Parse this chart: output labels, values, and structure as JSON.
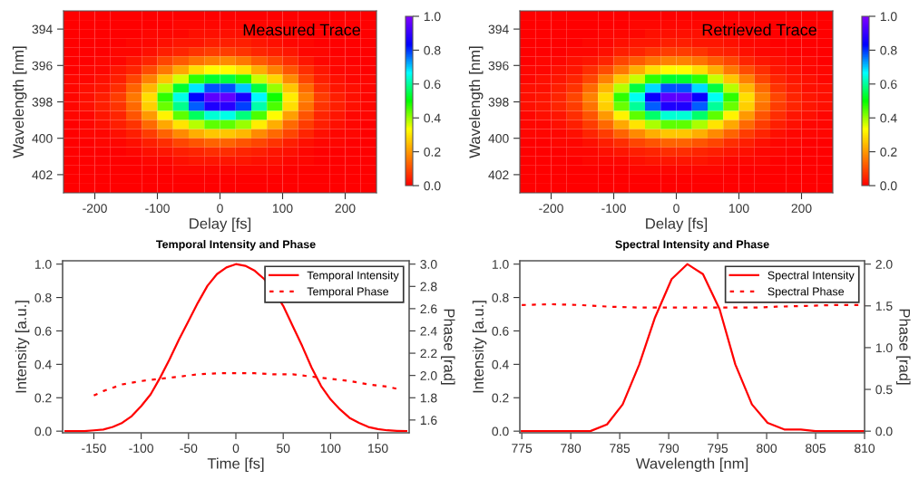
{
  "chart_data": [
    {
      "type": "heatmap",
      "annotations": [
        "Measured Trace"
      ],
      "xlabel": "Delay [fs]",
      "ylabel": "Wavelength [nm]",
      "x": [
        -237.5,
        -212.5,
        -187.5,
        -162.5,
        -137.5,
        -112.5,
        -87.5,
        -62.5,
        -37.5,
        -12.5,
        12.5,
        37.5,
        62.5,
        87.5,
        112.5,
        137.5,
        162.5,
        187.5,
        212.5,
        237.5
      ],
      "y": [
        393.25,
        393.75,
        394.25,
        394.75,
        395.25,
        395.75,
        396.25,
        396.75,
        397.25,
        397.75,
        398.25,
        398.75,
        399.25,
        399.75,
        400.25,
        400.75,
        401.25,
        401.75,
        402.25,
        402.75
      ],
      "xlim": [
        -250,
        250
      ],
      "ylim": [
        403,
        393
      ],
      "xticks": [
        -200,
        -100,
        0,
        100,
        200
      ],
      "yticks": [
        394,
        396,
        398,
        400,
        402
      ],
      "clim": [
        0,
        1
      ],
      "cticks": [
        {
          "value": 0,
          "label": "0.0"
        },
        {
          "value": 0.2,
          "label": "0.2"
        },
        {
          "value": 0.4,
          "label": "0.4"
        },
        {
          "value": 0.6,
          "label": "0.6"
        },
        {
          "value": 0.8,
          "label": "0.8"
        },
        {
          "value": 1,
          "label": "1.0"
        }
      ],
      "cells": [
        [
          0,
          0,
          0,
          0,
          0,
          0,
          0,
          0,
          0,
          0,
          0,
          0,
          0,
          0,
          0,
          0,
          0,
          0,
          0,
          0
        ],
        [
          0,
          0,
          0,
          0,
          0,
          0,
          0,
          0.01,
          0.01,
          0.01,
          0.01,
          0.01,
          0.01,
          0.01,
          0,
          0,
          0,
          0,
          0,
          0
        ],
        [
          0,
          0,
          0,
          0,
          0,
          0.01,
          0.01,
          0.01,
          0.02,
          0.02,
          0.02,
          0.02,
          0.01,
          0.01,
          0.01,
          0,
          0,
          0,
          0,
          0
        ],
        [
          0,
          0,
          0,
          0,
          0.01,
          0.01,
          0.02,
          0.03,
          0.03,
          0.04,
          0.04,
          0.04,
          0.03,
          0.02,
          0.01,
          0.01,
          0,
          0,
          0,
          0
        ],
        [
          0,
          0,
          0,
          0.01,
          0.01,
          0.02,
          0.04,
          0.05,
          0.07,
          0.08,
          0.08,
          0.07,
          0.05,
          0.04,
          0.03,
          0.01,
          0.01,
          0,
          0,
          0
        ],
        [
          0,
          0,
          0.01,
          0.01,
          0.03,
          0.05,
          0.09,
          0.12,
          0.15,
          0.17,
          0.18,
          0.16,
          0.12,
          0.09,
          0.06,
          0.03,
          0.01,
          0.01,
          0,
          0
        ],
        [
          0,
          0.01,
          0.01,
          0.03,
          0.05,
          0.1,
          0.16,
          0.22,
          0.29,
          0.33,
          0.33,
          0.3,
          0.23,
          0.17,
          0.11,
          0.06,
          0.03,
          0.01,
          0.01,
          0
        ],
        [
          0.01,
          0.01,
          0.02,
          0.04,
          0.09,
          0.17,
          0.26,
          0.36,
          0.47,
          0.53,
          0.54,
          0.48,
          0.37,
          0.28,
          0.18,
          0.09,
          0.04,
          0.02,
          0.01,
          0.01
        ],
        [
          0.01,
          0.02,
          0.03,
          0.06,
          0.13,
          0.24,
          0.38,
          0.53,
          0.68,
          0.78,
          0.78,
          0.7,
          0.54,
          0.4,
          0.26,
          0.14,
          0.06,
          0.03,
          0.02,
          0.01
        ],
        [
          0.01,
          0.02,
          0.04,
          0.08,
          0.16,
          0.29,
          0.47,
          0.65,
          0.83,
          0.95,
          0.96,
          0.86,
          0.67,
          0.49,
          0.31,
          0.17,
          0.08,
          0.04,
          0.02,
          0.01
        ],
        [
          0.01,
          0.02,
          0.04,
          0.07,
          0.14,
          0.27,
          0.43,
          0.59,
          0.77,
          0.87,
          0.88,
          0.79,
          0.61,
          0.45,
          0.29,
          0.15,
          0.07,
          0.04,
          0.02,
          0.01
        ],
        [
          0.01,
          0.01,
          0.03,
          0.05,
          0.11,
          0.2,
          0.32,
          0.44,
          0.56,
          0.64,
          0.65,
          0.58,
          0.45,
          0.33,
          0.21,
          0.11,
          0.05,
          0.03,
          0.01,
          0.01
        ],
        [
          0,
          0.01,
          0.02,
          0.04,
          0.07,
          0.14,
          0.22,
          0.3,
          0.38,
          0.44,
          0.44,
          0.4,
          0.31,
          0.23,
          0.14,
          0.08,
          0.04,
          0.02,
          0.01,
          0
        ],
        [
          0,
          0.01,
          0.01,
          0.02,
          0.04,
          0.08,
          0.13,
          0.18,
          0.23,
          0.26,
          0.26,
          0.24,
          0.18,
          0.14,
          0.09,
          0.05,
          0.02,
          0.01,
          0.01,
          0
        ],
        [
          0,
          0,
          0.01,
          0.01,
          0.02,
          0.04,
          0.06,
          0.09,
          0.11,
          0.13,
          0.13,
          0.11,
          0.09,
          0.07,
          0.04,
          0.02,
          0.01,
          0.01,
          0,
          0
        ],
        [
          0,
          0,
          0,
          0,
          0.01,
          0.02,
          0.03,
          0.04,
          0.05,
          0.06,
          0.06,
          0.05,
          0.04,
          0.03,
          0.02,
          0.01,
          0,
          0,
          0,
          0
        ],
        [
          0,
          0,
          0,
          0,
          0,
          0.01,
          0.01,
          0.02,
          0.03,
          0.03,
          0.03,
          0.03,
          0.02,
          0.02,
          0.01,
          0.01,
          0,
          0,
          0,
          0
        ],
        [
          0,
          0,
          0,
          0,
          0,
          0,
          0,
          0.01,
          0.01,
          0.01,
          0.01,
          0.01,
          0.01,
          0.01,
          0,
          0,
          0,
          0,
          0,
          0
        ],
        [
          0,
          0,
          0,
          0,
          0,
          0,
          0,
          0,
          0,
          0,
          0,
          0,
          0,
          0,
          0,
          0,
          0,
          0,
          0,
          0
        ],
        [
          0,
          0,
          0,
          0,
          0,
          0,
          0,
          0,
          0,
          0,
          0,
          0,
          0,
          0,
          0,
          0,
          0,
          0,
          0,
          0
        ]
      ]
    },
    {
      "type": "heatmap",
      "annotations": [
        "Retrieved Trace"
      ],
      "xlabel": "Delay [fs]",
      "ylabel": "Wavelength [nm]",
      "x": [
        -237.5,
        -212.5,
        -187.5,
        -162.5,
        -137.5,
        -112.5,
        -87.5,
        -62.5,
        -37.5,
        -12.5,
        12.5,
        37.5,
        62.5,
        87.5,
        112.5,
        137.5,
        162.5,
        187.5,
        212.5,
        237.5
      ],
      "y": [
        393.25,
        393.75,
        394.25,
        394.75,
        395.25,
        395.75,
        396.25,
        396.75,
        397.25,
        397.75,
        398.25,
        398.75,
        399.25,
        399.75,
        400.25,
        400.75,
        401.25,
        401.75,
        402.25,
        402.75
      ],
      "xlim": [
        -250,
        250
      ],
      "ylim": [
        403,
        393
      ],
      "xticks": [
        -200,
        -100,
        0,
        100,
        200
      ],
      "yticks": [
        394,
        396,
        398,
        400,
        402
      ],
      "clim": [
        0,
        1
      ],
      "cticks": [
        {
          "value": 0,
          "label": "0.0"
        },
        {
          "value": 0.2,
          "label": "0.2"
        },
        {
          "value": 0.4,
          "label": "0.4"
        },
        {
          "value": 0.6,
          "label": "0.6"
        },
        {
          "value": 0.8,
          "label": "0.8"
        },
        {
          "value": 1,
          "label": "1.0"
        }
      ],
      "cells": [
        [
          0,
          0,
          0,
          0,
          0,
          0,
          0,
          0,
          0,
          0,
          0,
          0,
          0,
          0,
          0,
          0,
          0,
          0,
          0,
          0
        ],
        [
          0,
          0,
          0,
          0,
          0,
          0,
          0,
          0.01,
          0.01,
          0.01,
          0.01,
          0.01,
          0.01,
          0,
          0,
          0,
          0,
          0,
          0,
          0
        ],
        [
          0,
          0,
          0,
          0,
          0,
          0.01,
          0.01,
          0.01,
          0.02,
          0.02,
          0.02,
          0.02,
          0.01,
          0.01,
          0.01,
          0,
          0,
          0,
          0,
          0
        ],
        [
          0,
          0,
          0,
          0,
          0.01,
          0.01,
          0.02,
          0.03,
          0.03,
          0.04,
          0.04,
          0.03,
          0.03,
          0.02,
          0.01,
          0.01,
          0,
          0,
          0,
          0
        ],
        [
          0,
          0,
          0,
          0.01,
          0.01,
          0.02,
          0.04,
          0.05,
          0.07,
          0.08,
          0.08,
          0.07,
          0.05,
          0.04,
          0.02,
          0.01,
          0.01,
          0,
          0,
          0
        ],
        [
          0,
          0.01,
          0.01,
          0.02,
          0.03,
          0.05,
          0.09,
          0.12,
          0.15,
          0.17,
          0.17,
          0.15,
          0.12,
          0.09,
          0.05,
          0.03,
          0.02,
          0.01,
          0.01,
          0
        ],
        [
          0.01,
          0.01,
          0.02,
          0.03,
          0.06,
          0.1,
          0.16,
          0.23,
          0.29,
          0.33,
          0.33,
          0.29,
          0.23,
          0.16,
          0.1,
          0.06,
          0.03,
          0.02,
          0.01,
          0.01
        ],
        [
          0.01,
          0.02,
          0.03,
          0.05,
          0.09,
          0.17,
          0.26,
          0.37,
          0.47,
          0.53,
          0.53,
          0.47,
          0.37,
          0.26,
          0.17,
          0.09,
          0.05,
          0.03,
          0.02,
          0.01
        ],
        [
          0.02,
          0.02,
          0.04,
          0.07,
          0.14,
          0.24,
          0.38,
          0.54,
          0.69,
          0.78,
          0.78,
          0.69,
          0.54,
          0.38,
          0.24,
          0.14,
          0.07,
          0.04,
          0.02,
          0.02
        ],
        [
          0.02,
          0.03,
          0.05,
          0.09,
          0.17,
          0.29,
          0.47,
          0.66,
          0.84,
          0.95,
          0.95,
          0.84,
          0.66,
          0.47,
          0.29,
          0.17,
          0.09,
          0.05,
          0.03,
          0.02
        ],
        [
          0.02,
          0.03,
          0.05,
          0.08,
          0.15,
          0.27,
          0.43,
          0.6,
          0.77,
          0.87,
          0.87,
          0.77,
          0.6,
          0.43,
          0.27,
          0.15,
          0.08,
          0.05,
          0.03,
          0.02
        ],
        [
          0.01,
          0.02,
          0.03,
          0.06,
          0.11,
          0.2,
          0.32,
          0.44,
          0.57,
          0.64,
          0.64,
          0.57,
          0.44,
          0.32,
          0.2,
          0.11,
          0.06,
          0.03,
          0.02,
          0.01
        ],
        [
          0.01,
          0.01,
          0.02,
          0.04,
          0.08,
          0.14,
          0.22,
          0.3,
          0.39,
          0.44,
          0.44,
          0.39,
          0.3,
          0.22,
          0.14,
          0.08,
          0.04,
          0.02,
          0.01,
          0.01
        ],
        [
          0.01,
          0.01,
          0.01,
          0.02,
          0.05,
          0.08,
          0.13,
          0.18,
          0.23,
          0.26,
          0.26,
          0.23,
          0.18,
          0.13,
          0.08,
          0.05,
          0.02,
          0.01,
          0.01,
          0.01
        ],
        [
          0,
          0,
          0.01,
          0.01,
          0.02,
          0.04,
          0.06,
          0.09,
          0.11,
          0.13,
          0.13,
          0.11,
          0.09,
          0.06,
          0.04,
          0.02,
          0.01,
          0.01,
          0,
          0
        ],
        [
          0,
          0,
          0,
          0.01,
          0.01,
          0.02,
          0.03,
          0.04,
          0.05,
          0.06,
          0.06,
          0.05,
          0.04,
          0.03,
          0.02,
          0.01,
          0.01,
          0,
          0,
          0
        ],
        [
          0,
          0,
          0,
          0,
          0.01,
          0.01,
          0.01,
          0.02,
          0.03,
          0.03,
          0.03,
          0.03,
          0.02,
          0.01,
          0.01,
          0.01,
          0,
          0,
          0,
          0
        ],
        [
          0,
          0,
          0,
          0,
          0,
          0,
          0,
          0.01,
          0.01,
          0.01,
          0.01,
          0.01,
          0.01,
          0,
          0,
          0,
          0,
          0,
          0,
          0
        ],
        [
          0,
          0,
          0,
          0,
          0,
          0,
          0,
          0,
          0,
          0,
          0,
          0,
          0,
          0,
          0,
          0,
          0,
          0,
          0,
          0
        ],
        [
          0,
          0,
          0,
          0,
          0,
          0,
          0,
          0,
          0,
          0,
          0,
          0,
          0,
          0,
          0,
          0,
          0,
          0,
          0,
          0
        ]
      ]
    },
    {
      "type": "line",
      "title": "Temporal Intensity and Phase",
      "xlabel": "Time [fs]",
      "ylabel": "Intensity [a.u.]",
      "y2label": "Phase [rad]",
      "xlim": [
        -183,
        183
      ],
      "xticks": [
        -150,
        -100,
        -50,
        0,
        50,
        100,
        150
      ],
      "ylim": [
        -0.01,
        1.02
      ],
      "yticks": [
        {
          "value": 0,
          "label": "0.0"
        },
        {
          "value": 0.2,
          "label": "0.2"
        },
        {
          "value": 0.4,
          "label": "0.4"
        },
        {
          "value": 0.6,
          "label": "0.6"
        },
        {
          "value": 0.8,
          "label": "0.8"
        },
        {
          "value": 1,
          "label": "1.0"
        }
      ],
      "y2lim": [
        1.485,
        3.03
      ],
      "y2ticks": [
        1.6,
        1.8,
        {
          "value": 2,
          "label": "2.0"
        },
        2.2,
        2.4,
        2.6,
        2.8,
        {
          "value": 3,
          "label": "3.0"
        }
      ],
      "legend": "top right",
      "series": [
        {
          "name": "Temporal Intensity",
          "color": "#ff0000",
          "line_style": "solid",
          "x": [
            -180,
            -170,
            -160,
            -150,
            -140,
            -130,
            -120,
            -110,
            -100,
            -90,
            -80,
            -70,
            -60,
            -50,
            -40,
            -30,
            -20,
            -10,
            0,
            10,
            20,
            30,
            40,
            50,
            60,
            70,
            80,
            90,
            100,
            110,
            120,
            130,
            140,
            150,
            160,
            170,
            180
          ],
          "values": [
            0,
            0,
            0,
            0.005,
            0.01,
            0.025,
            0.05,
            0.09,
            0.15,
            0.22,
            0.32,
            0.43,
            0.55,
            0.66,
            0.77,
            0.87,
            0.94,
            0.98,
            1.0,
            0.99,
            0.96,
            0.91,
            0.84,
            0.75,
            0.63,
            0.51,
            0.38,
            0.27,
            0.19,
            0.13,
            0.08,
            0.05,
            0.025,
            0.012,
            0.005,
            0.002,
            0
          ]
        },
        {
          "name": "Temporal Phase",
          "color": "#ff0000",
          "line_style": "dashed",
          "axis": "y2",
          "x": [
            -150,
            -140,
            -130,
            -120,
            -100,
            -80,
            -60,
            -40,
            -20,
            0,
            20,
            40,
            60,
            80,
            100,
            120,
            140,
            160,
            170
          ],
          "values": [
            1.82,
            1.86,
            1.89,
            1.92,
            1.95,
            1.97,
            1.99,
            2.01,
            2.02,
            2.02,
            2.02,
            2.01,
            2.01,
            1.99,
            1.97,
            1.95,
            1.92,
            1.9,
            1.88
          ]
        }
      ]
    },
    {
      "type": "line",
      "title": "Spectral Intensity and Phase",
      "xlabel": "Wavelength [nm]",
      "ylabel": "Intensity [a.u.]",
      "y2label": "Phase [rad]",
      "xlim": [
        774.8,
        810
      ],
      "xticks": [
        775,
        780,
        785,
        790,
        795,
        800,
        805,
        810
      ],
      "ylim": [
        -0.01,
        1.02
      ],
      "yticks": [
        {
          "value": 0,
          "label": "0.0"
        },
        {
          "value": 0.2,
          "label": "0.2"
        },
        {
          "value": 0.4,
          "label": "0.4"
        },
        {
          "value": 0.6,
          "label": "0.6"
        },
        {
          "value": 0.8,
          "label": "0.8"
        },
        {
          "value": 1,
          "label": "1.0"
        }
      ],
      "y2lim": [
        -0.02,
        2.04
      ],
      "y2ticks": [
        {
          "value": 0,
          "label": "0.0"
        },
        0.5,
        {
          "value": 1,
          "label": "1.0"
        },
        1.5,
        {
          "value": 2,
          "label": "2.0"
        }
      ],
      "legend": "top right",
      "series": [
        {
          "name": "Spectral Intensity",
          "color": "#ff0000",
          "line_style": "solid",
          "x": [
            775,
            782,
            783.7,
            785.3,
            787,
            788.6,
            790.3,
            791.9,
            793.5,
            795.2,
            796.8,
            798.5,
            800.1,
            801.8,
            803.5,
            805,
            810
          ],
          "values": [
            0,
            0,
            0.04,
            0.16,
            0.4,
            0.68,
            0.91,
            1.0,
            0.94,
            0.73,
            0.4,
            0.16,
            0.05,
            0.01,
            0.01,
            0,
            0
          ]
        },
        {
          "name": "Spectral Phase",
          "color": "#ff0000",
          "line_style": "dashed",
          "axis": "y2",
          "x": [
            775,
            778,
            781,
            784,
            787,
            790,
            793,
            796,
            799,
            801,
            804,
            807,
            810
          ],
          "values": [
            1.51,
            1.52,
            1.51,
            1.49,
            1.48,
            1.48,
            1.48,
            1.48,
            1.48,
            1.49,
            1.5,
            1.51,
            1.51
          ]
        }
      ]
    }
  ]
}
